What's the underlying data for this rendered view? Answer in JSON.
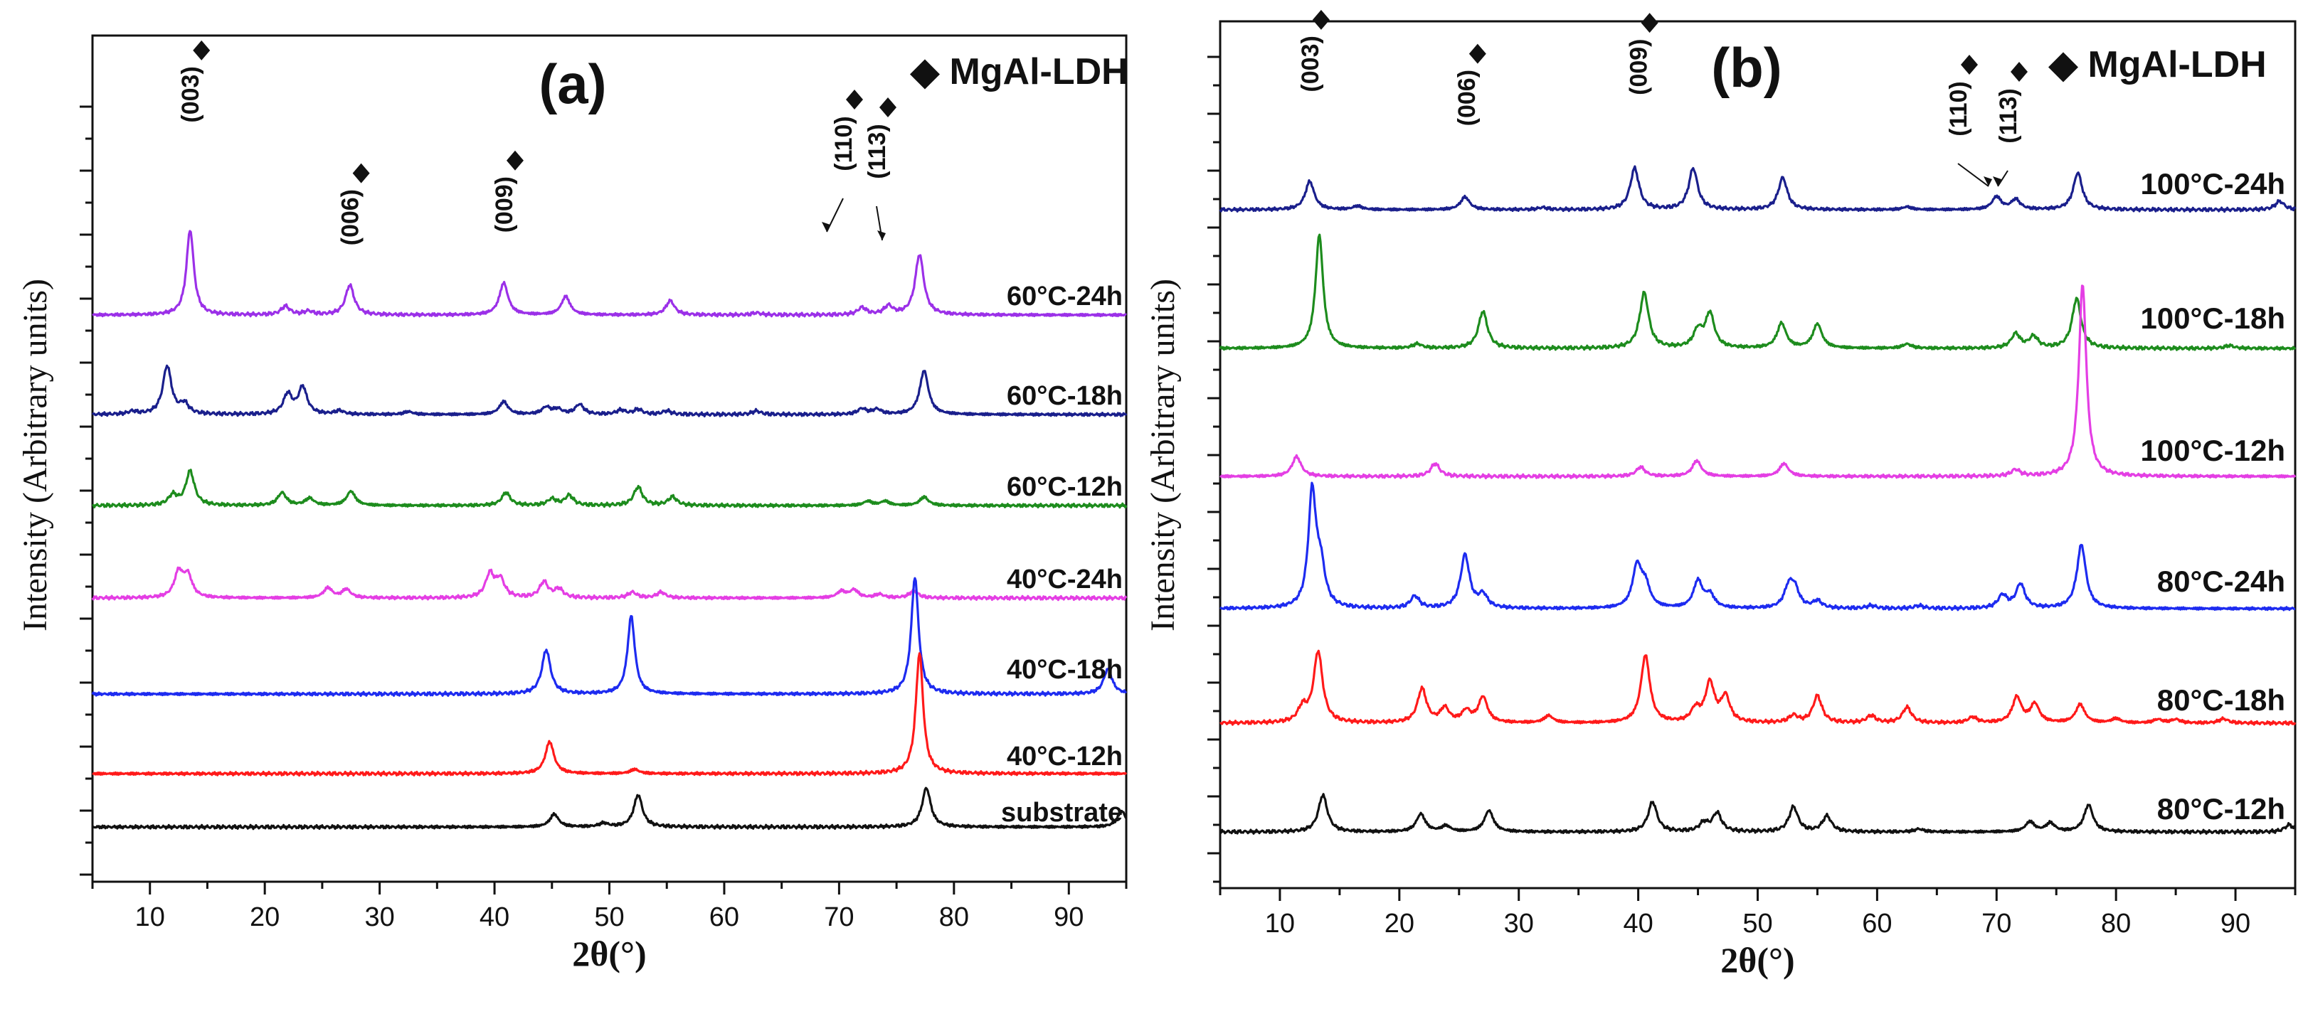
{
  "legend_symbol": "◆",
  "chart_data": [
    {
      "type": "line",
      "panel_label": "(a)",
      "legend": "MgAl-LDH",
      "xlabel": "2θ(°)",
      "ylabel": "Intensity (Arbitrary units)",
      "xlim": [
        5,
        95
      ],
      "xticks": [
        10,
        20,
        30,
        40,
        50,
        60,
        70,
        80,
        90
      ],
      "y_ticks_unlabeled": true,
      "marker_symbol": "◆",
      "annotations": [
        {
          "label": "(003)",
          "x": 13.5
        },
        {
          "label": "(006)",
          "x": 27.4
        },
        {
          "label": "(009)",
          "x": 40.8
        },
        {
          "label": "(110)",
          "x": 72.0
        },
        {
          "label": "(113)",
          "x": 74.6
        }
      ],
      "series": [
        {
          "name": "60°C-24h",
          "color": "#9b30e8",
          "offset": 720,
          "peaks": [
            [
              13.5,
              120
            ],
            [
              21.8,
              12
            ],
            [
              23.8,
              5
            ],
            [
              27.4,
              42
            ],
            [
              40.8,
              45
            ],
            [
              46.2,
              26
            ],
            [
              55.3,
              20
            ],
            [
              62.8,
              3
            ],
            [
              72.0,
              10
            ],
            [
              74.3,
              12
            ],
            [
              77.0,
              85
            ]
          ]
        },
        {
          "name": "60°C-18h",
          "color": "#1a1f8c",
          "offset": 580,
          "peaks": [
            [
              8.5,
              4
            ],
            [
              11.5,
              68
            ],
            [
              13.0,
              14
            ],
            [
              22.0,
              28
            ],
            [
              23.3,
              38
            ],
            [
              26.5,
              5
            ],
            [
              32.5,
              4
            ],
            [
              40.8,
              18
            ],
            [
              44.5,
              10
            ],
            [
              45.5,
              7
            ],
            [
              47.4,
              14
            ],
            [
              51.0,
              6
            ],
            [
              52.5,
              7
            ],
            [
              55.0,
              5
            ],
            [
              62.8,
              5
            ],
            [
              72.0,
              8
            ],
            [
              73.3,
              7
            ],
            [
              77.4,
              62
            ]
          ]
        },
        {
          "name": "60°C-12h",
          "color": "#1d8c1d",
          "offset": 452,
          "peaks": [
            [
              12.0,
              14
            ],
            [
              13.5,
              48
            ],
            [
              21.5,
              18
            ],
            [
              23.9,
              10
            ],
            [
              27.5,
              20
            ],
            [
              41.0,
              18
            ],
            [
              45.0,
              9
            ],
            [
              46.5,
              14
            ],
            [
              52.5,
              26
            ],
            [
              55.5,
              12
            ],
            [
              72.5,
              6
            ],
            [
              74.0,
              6
            ],
            [
              77.4,
              12
            ]
          ]
        },
        {
          "name": "40°C-24h",
          "color": "#e43ee4",
          "offset": 322,
          "peaks": [
            [
              12.5,
              35
            ],
            [
              13.3,
              30
            ],
            [
              25.5,
              14
            ],
            [
              27.1,
              12
            ],
            [
              39.6,
              33
            ],
            [
              40.5,
              25
            ],
            [
              44.3,
              22
            ],
            [
              45.6,
              12
            ],
            [
              52.0,
              8
            ],
            [
              54.5,
              8
            ],
            [
              70.2,
              9
            ],
            [
              71.3,
              11
            ],
            [
              73.5,
              5
            ],
            [
              76.5,
              10
            ]
          ]
        },
        {
          "name": "40°C-18h",
          "color": "#1d2bf0",
          "offset": 187,
          "peaks": [
            [
              44.5,
              62
            ],
            [
              51.9,
              110
            ],
            [
              76.6,
              165
            ],
            [
              93.4,
              35
            ]
          ]
        },
        {
          "name": "40°C-12h",
          "color": "#ff1a1a",
          "offset": 75,
          "peaks": [
            [
              44.8,
              45
            ],
            [
              52.2,
              6
            ],
            [
              77.0,
              170
            ]
          ]
        },
        {
          "name": "substrate",
          "color": "#111111",
          "offset": 0,
          "peaks": [
            [
              45.2,
              18
            ],
            [
              49.5,
              5
            ],
            [
              52.5,
              45
            ],
            [
              77.6,
              55
            ],
            [
              94.6,
              22
            ]
          ]
        }
      ]
    },
    {
      "type": "line",
      "panel_label": "(b)",
      "legend": "MgAl-LDH",
      "xlabel": "2θ(°)",
      "ylabel": "Intensity (Arbitrary units)",
      "xlim": [
        5,
        95
      ],
      "xticks": [
        10,
        20,
        30,
        40,
        50,
        60,
        70,
        80,
        90
      ],
      "y_ticks_unlabeled": true,
      "marker_symbol": "◆",
      "annotations": [
        {
          "label": "(003)",
          "x": 12.5
        },
        {
          "label": "(006)",
          "x": 25.6
        },
        {
          "label": "(009)",
          "x": 40.0
        },
        {
          "label": "(110)",
          "x": 70.0
        },
        {
          "label": "(113)",
          "x": 72.2
        }
      ],
      "series": [
        {
          "name": "100°C-24h",
          "color": "#1a1f8c",
          "offset": 875,
          "peaks": [
            [
              12.5,
              40
            ],
            [
              16.5,
              5
            ],
            [
              25.5,
              18
            ],
            [
              32.0,
              3
            ],
            [
              39.7,
              58
            ],
            [
              44.6,
              58
            ],
            [
              52.1,
              45
            ],
            [
              62.5,
              4
            ],
            [
              70.0,
              18
            ],
            [
              71.6,
              14
            ],
            [
              76.8,
              52
            ],
            [
              93.7,
              12
            ]
          ]
        },
        {
          "name": "100°C-18h",
          "color": "#1d8c1d",
          "offset": 680,
          "peaks": [
            [
              13.3,
              160
            ],
            [
              21.5,
              6
            ],
            [
              27.0,
              52
            ],
            [
              40.5,
              78
            ],
            [
              45.0,
              24
            ],
            [
              46.0,
              48
            ],
            [
              52.0,
              35
            ],
            [
              55.0,
              34
            ],
            [
              62.5,
              6
            ],
            [
              71.6,
              20
            ],
            [
              73.1,
              16
            ],
            [
              76.7,
              70
            ],
            [
              89.5,
              4
            ]
          ]
        },
        {
          "name": "100°C-12h",
          "color": "#e43ee4",
          "offset": 500,
          "peaks": [
            [
              11.4,
              28
            ],
            [
              23.0,
              18
            ],
            [
              40.2,
              13
            ],
            [
              44.9,
              22
            ],
            [
              52.2,
              18
            ],
            [
              71.6,
              9
            ],
            [
              77.2,
              270
            ]
          ]
        },
        {
          "name": "80°C-24h",
          "color": "#1d2bf0",
          "offset": 314,
          "peaks": [
            [
              12.7,
              160
            ],
            [
              13.4,
              55
            ],
            [
              21.3,
              17
            ],
            [
              25.5,
              75
            ],
            [
              27.0,
              18
            ],
            [
              39.9,
              58
            ],
            [
              40.6,
              30
            ],
            [
              45.0,
              38
            ],
            [
              46.0,
              18
            ],
            [
              52.6,
              28
            ],
            [
              53.1,
              25
            ],
            [
              55.0,
              10
            ],
            [
              59.5,
              4
            ],
            [
              63.5,
              4
            ],
            [
              70.5,
              18
            ],
            [
              72.0,
              34
            ],
            [
              77.1,
              90
            ]
          ]
        },
        {
          "name": "80°C-18h",
          "color": "#ff1a1a",
          "offset": 153,
          "peaks": [
            [
              11.9,
              20
            ],
            [
              13.2,
              100
            ],
            [
              21.9,
              48
            ],
            [
              23.8,
              20
            ],
            [
              25.6,
              16
            ],
            [
              27.0,
              36
            ],
            [
              32.5,
              10
            ],
            [
              40.6,
              95
            ],
            [
              44.8,
              18
            ],
            [
              46.0,
              55
            ],
            [
              47.3,
              36
            ],
            [
              53.0,
              10
            ],
            [
              55.0,
              38
            ],
            [
              59.5,
              10
            ],
            [
              62.5,
              22
            ],
            [
              68.0,
              8
            ],
            [
              71.7,
              36
            ],
            [
              73.2,
              26
            ],
            [
              77.0,
              26
            ],
            [
              80.0,
              6
            ],
            [
              83.5,
              5
            ],
            [
              85.0,
              5
            ],
            [
              89.0,
              6
            ]
          ]
        },
        {
          "name": "80°C-12h",
          "color": "#111111",
          "offset": 0,
          "peaks": [
            [
              13.6,
              52
            ],
            [
              21.8,
              25
            ],
            [
              23.9,
              8
            ],
            [
              27.5,
              30
            ],
            [
              41.2,
              42
            ],
            [
              45.5,
              12
            ],
            [
              46.6,
              26
            ],
            [
              53.0,
              35
            ],
            [
              55.8,
              22
            ],
            [
              63.5,
              4
            ],
            [
              72.8,
              14
            ],
            [
              74.5,
              12
            ],
            [
              77.7,
              38
            ],
            [
              94.5,
              10
            ]
          ]
        }
      ]
    }
  ]
}
